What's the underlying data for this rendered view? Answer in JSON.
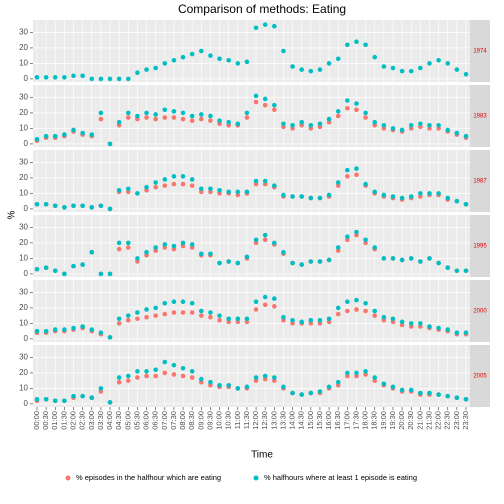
{
  "chart_data": {
    "type": "scatter",
    "title": "Comparison of methods: Eating",
    "x_label": "Time",
    "y_label": "%",
    "categories": [
      "00:00",
      "00:30",
      "01:00",
      "01:30",
      "02:00",
      "02:30",
      "03:00",
      "03:30",
      "04:00",
      "04:30",
      "05:00",
      "05:30",
      "06:00",
      "06:30",
      "07:00",
      "07:30",
      "08:00",
      "08:30",
      "09:00",
      "09:30",
      "10:00",
      "10:30",
      "11:00",
      "11:30",
      "12:00",
      "12:30",
      "13:00",
      "13:30",
      "14:00",
      "14:30",
      "15:00",
      "15:30",
      "16:00",
      "16:30",
      "17:00",
      "17:30",
      "18:00",
      "18:30",
      "19:00",
      "19:30",
      "20:00",
      "20:30",
      "21:00",
      "21:30",
      "22:00",
      "22:30",
      "23:00",
      "23:30"
    ],
    "ylim": [
      -2,
      38
    ],
    "yticks": [
      0,
      10,
      20,
      30
    ],
    "grid": true,
    "legend": "bottom",
    "facets": [
      {
        "label": "1974",
        "series": [
          {
            "name": "% episodes in the halfhour which are eating",
            "color": "#F8766D",
            "values": [
              null,
              null,
              null,
              null,
              null,
              null,
              null,
              null,
              null,
              null,
              null,
              null,
              null,
              null,
              null,
              null,
              null,
              null,
              null,
              null,
              null,
              null,
              null,
              null,
              null,
              null,
              null,
              null,
              null,
              null,
              null,
              null,
              null,
              null,
              null,
              null,
              null,
              null,
              null,
              null,
              null,
              null,
              null,
              null,
              null,
              null,
              null,
              null
            ]
          },
          {
            "name": "% halfhours where at least 1 episode is eating",
            "color": "#00BFC4",
            "values": [
              1,
              1,
              1,
              1,
              2,
              2,
              0,
              0,
              0,
              0,
              0,
              4,
              6,
              7,
              10,
              12,
              14,
              16,
              18,
              15,
              13,
              12,
              10,
              11,
              33,
              35,
              34,
              18,
              8,
              6,
              5,
              6,
              10,
              13,
              22,
              24,
              22,
              14,
              8,
              7,
              5,
              5,
              7,
              10,
              12,
              10,
              6,
              3
            ]
          }
        ]
      },
      {
        "label": "1983",
        "series": [
          {
            "name": "% episodes in the halfhour which are eating",
            "color": "#F8766D",
            "values": [
              2,
              4,
              4,
              5,
              8,
              6,
              5,
              16,
              0,
              12,
              17,
              16,
              17,
              16,
              17,
              17,
              16,
              15,
              16,
              15,
              13,
              12,
              12,
              17,
              27,
              25,
              22,
              11,
              10,
              12,
              10,
              11,
              14,
              18,
              23,
              22,
              17,
              12,
              10,
              9,
              8,
              10,
              11,
              10,
              10,
              8,
              6,
              4
            ]
          },
          {
            "name": "% halfhours where at least 1 episode is eating",
            "color": "#00BFC4",
            "values": [
              3,
              5,
              5,
              6,
              9,
              7,
              6,
              20,
              0,
              14,
              20,
              18,
              20,
              19,
              22,
              21,
              20,
              18,
              19,
              18,
              15,
              14,
              13,
              20,
              31,
              29,
              25,
              13,
              12,
              14,
              12,
              13,
              16,
              21,
              28,
              26,
              20,
              14,
              12,
              10,
              9,
              12,
              13,
              12,
              12,
              9,
              7,
              5
            ]
          }
        ]
      },
      {
        "label": "1987",
        "series": [
          {
            "name": "% episodes in the halfhour which are eating",
            "color": "#F8766D",
            "values": [
              3,
              3,
              2,
              1,
              2,
              2,
              1,
              2,
              0,
              11,
              11,
              10,
              12,
              14,
              15,
              16,
              16,
              15,
              11,
              11,
              10,
              10,
              9,
              10,
              16,
              16,
              14,
              8,
              8,
              8,
              7,
              7,
              8,
              15,
              21,
              22,
              15,
              10,
              8,
              7,
              6,
              7,
              8,
              9,
              9,
              6,
              5,
              3
            ]
          },
          {
            "name": "% halfhours where at least 1 episode is eating",
            "color": "#00BFC4",
            "values": [
              3,
              3,
              2,
              1,
              2,
              2,
              1,
              2,
              0,
              12,
              13,
              10,
              14,
              17,
              19,
              21,
              21,
              19,
              13,
              13,
              12,
              11,
              11,
              11,
              18,
              18,
              15,
              9,
              8,
              8,
              7,
              7,
              9,
              17,
              25,
              26,
              16,
              11,
              9,
              8,
              7,
              8,
              10,
              10,
              10,
              7,
              5,
              3
            ]
          }
        ]
      },
      {
        "label": "1995",
        "series": [
          {
            "name": "% episodes in the halfhour which are eating",
            "color": "#F8766D",
            "values": [
              3,
              4,
              2,
              0,
              5,
              6,
              14,
              0,
              0,
              16,
              17,
              8,
              12,
              15,
              17,
              16,
              18,
              17,
              12,
              12,
              7,
              8,
              7,
              10,
              20,
              22,
              19,
              13,
              7,
              6,
              8,
              8,
              9,
              15,
              22,
              25,
              20,
              16,
              10,
              10,
              9,
              10,
              8,
              10,
              7,
              4,
              2,
              2
            ]
          },
          {
            "name": "% halfhours where at least 1 episode is eating",
            "color": "#00BFC4",
            "values": [
              3,
              4,
              2,
              0,
              5,
              6,
              14,
              0,
              0,
              20,
              20,
              10,
              14,
              17,
              19,
              18,
              20,
              19,
              13,
              13,
              7,
              8,
              7,
              11,
              22,
              25,
              20,
              14,
              7,
              6,
              8,
              8,
              9,
              17,
              24,
              27,
              22,
              17,
              10,
              10,
              9,
              10,
              8,
              10,
              7,
              4,
              2,
              2
            ]
          }
        ]
      },
      {
        "label": "2000",
        "series": [
          {
            "name": "% episodes in the halfhour which are eating",
            "color": "#F8766D",
            "values": [
              4,
              4,
              5,
              5,
              6,
              7,
              5,
              3,
              1,
              10,
              12,
              13,
              14,
              15,
              16,
              17,
              17,
              17,
              15,
              14,
              12,
              11,
              11,
              11,
              19,
              22,
              21,
              12,
              10,
              10,
              10,
              10,
              11,
              16,
              18,
              19,
              18,
              15,
              12,
              11,
              9,
              8,
              8,
              7,
              6,
              5,
              3,
              3
            ]
          },
          {
            "name": "% halfhours where at least 1 episode is eating",
            "color": "#00BFC4",
            "values": [
              5,
              5,
              6,
              6,
              7,
              8,
              6,
              4,
              1,
              13,
              15,
              17,
              19,
              20,
              23,
              24,
              24,
              23,
              18,
              17,
              15,
              13,
              13,
              13,
              24,
              27,
              26,
              14,
              12,
              11,
              12,
              12,
              13,
              20,
              24,
              25,
              23,
              18,
              14,
              13,
              11,
              10,
              10,
              8,
              7,
              6,
              4,
              4
            ]
          }
        ]
      },
      {
        "label": "2005",
        "series": [
          {
            "name": "% episodes in the halfhour which are eating",
            "color": "#F8766D",
            "values": [
              2,
              3,
              2,
              2,
              4,
              5,
              4,
              8,
              1,
              14,
              15,
              17,
              18,
              18,
              20,
              19,
              18,
              17,
              14,
              12,
              11,
              11,
              10,
              10,
              15,
              16,
              15,
              10,
              7,
              6,
              7,
              7,
              10,
              12,
              18,
              18,
              19,
              15,
              12,
              10,
              8,
              8,
              6,
              6,
              6,
              5,
              4,
              3
            ]
          },
          {
            "name": "% halfhours where at least 1 episode is eating",
            "color": "#00BFC4",
            "values": [
              3,
              3,
              2,
              2,
              5,
              5,
              4,
              10,
              1,
              17,
              18,
              21,
              21,
              22,
              27,
              25,
              23,
              21,
              16,
              14,
              12,
              12,
              10,
              11,
              17,
              18,
              17,
              11,
              7,
              6,
              7,
              8,
              11,
              14,
              20,
              20,
              21,
              17,
              13,
              11,
              9,
              9,
              7,
              7,
              6,
              5,
              4,
              3
            ]
          }
        ]
      }
    ]
  }
}
